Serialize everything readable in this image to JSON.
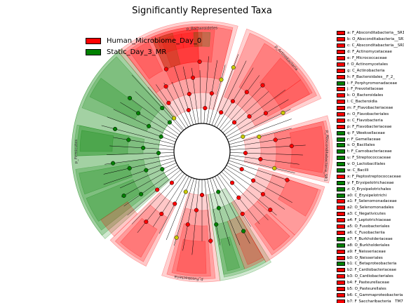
{
  "title": "Significantly Represented Taxa",
  "colors": {
    "group_a": "#ff0000",
    "group_b": "#008000",
    "node_neutral": "#c8c800"
  },
  "legend": [
    {
      "label": "Human_Microbiome_Day_0",
      "color": "#ff0000"
    },
    {
      "label": "Static_Day_3_MR",
      "color": "#008000"
    }
  ],
  "chart_data": {
    "type": "cladogram",
    "title": "Significantly Represented Taxa",
    "groups": [
      "Human_Microbiome_Day_0",
      "Static_Day_3_MR"
    ],
    "sector_labels": [
      {
        "text": "p_Bacteroidetes",
        "group": "Human_Microbiome_Day_0"
      },
      {
        "text": "p_Actinobacteria",
        "group": "Human_Microbiome_Day_0"
      },
      {
        "text": "p_Absconditabacteria_SR1",
        "group": "Human_Microbiome_Day_0"
      },
      {
        "text": "p_Fusobacteria",
        "group": "Human_Microbiome_Day_0"
      },
      {
        "text": "p_Firmicutes",
        "group": "Static_Day_3_MR"
      }
    ],
    "taxa": [
      {
        "id": "a",
        "name": "a: F_Absconditabacteria__SR1_",
        "group": "Human_Microbiome_Day_0"
      },
      {
        "id": "b",
        "name": "b: O_Absconditabacteria__SR1_",
        "group": "Human_Microbiome_Day_0"
      },
      {
        "id": "c",
        "name": "c: C_Absconditabacteria__SR1_",
        "group": "Human_Microbiome_Day_0"
      },
      {
        "id": "d",
        "name": "d: F_Actinomycetaceae",
        "group": "Human_Microbiome_Day_0"
      },
      {
        "id": "e",
        "name": "e: F_Micrococcaceae",
        "group": "Human_Microbiome_Day_0"
      },
      {
        "id": "f",
        "name": "f: O_Actinomycetales",
        "group": "Human_Microbiome_Day_0"
      },
      {
        "id": "g",
        "name": "g: C_Actinobacteria",
        "group": "Human_Microbiome_Day_0"
      },
      {
        "id": "h",
        "name": "h: F_Bacteroidales__F_2_",
        "group": "Human_Microbiome_Day_0"
      },
      {
        "id": "i",
        "name": "i: F_Porphyromonadaceae",
        "group": "Static_Day_3_MR"
      },
      {
        "id": "j",
        "name": "j: F_Prevotellaceae",
        "group": "Human_Microbiome_Day_0"
      },
      {
        "id": "k",
        "name": "k: O_Bacteroidales",
        "group": "Human_Microbiome_Day_0"
      },
      {
        "id": "l",
        "name": "l: C_Bacteroidia",
        "group": "Human_Microbiome_Day_0"
      },
      {
        "id": "m",
        "name": "m: F_Flavobacteriaceae",
        "group": "Human_Microbiome_Day_0"
      },
      {
        "id": "n",
        "name": "n: O_Flavobacteriales",
        "group": "Human_Microbiome_Day_0"
      },
      {
        "id": "o",
        "name": "o: C_Flavobacteria",
        "group": "Human_Microbiome_Day_0"
      },
      {
        "id": "p",
        "name": "p: F_Flavobacteriaceae",
        "group": "Human_Microbiome_Day_0"
      },
      {
        "id": "q",
        "name": "q: F_Weeksellaceae",
        "group": "Static_Day_3_MR"
      },
      {
        "id": "r",
        "name": "r: F_Gemellaceae",
        "group": "Static_Day_3_MR"
      },
      {
        "id": "s",
        "name": "s: O_Bacillales",
        "group": "Static_Day_3_MR"
      },
      {
        "id": "t",
        "name": "t: F_Carnobacteriaceae",
        "group": "Static_Day_3_MR"
      },
      {
        "id": "u",
        "name": "u: F_Streptococcaceae",
        "group": "Static_Day_3_MR"
      },
      {
        "id": "v",
        "name": "v: O_Lactobacillales",
        "group": "Static_Day_3_MR"
      },
      {
        "id": "w",
        "name": "w: C_Bacilli",
        "group": "Static_Day_3_MR"
      },
      {
        "id": "x",
        "name": "x: F_Peptostreptococcaceae",
        "group": "Human_Microbiome_Day_0"
      },
      {
        "id": "y",
        "name": "y: F_Erysipelotrichaceae",
        "group": "Static_Day_3_MR"
      },
      {
        "id": "z",
        "name": "z: O_Erysipelotrichales",
        "group": "Static_Day_3_MR"
      },
      {
        "id": "a0",
        "name": "a0: C_Erysipelotrichi",
        "group": "Static_Day_3_MR"
      },
      {
        "id": "a1",
        "name": "a1: F_Selenomonadaceae",
        "group": "Human_Microbiome_Day_0"
      },
      {
        "id": "a2",
        "name": "a2: O_Selenomonadales",
        "group": "Human_Microbiome_Day_0"
      },
      {
        "id": "a3",
        "name": "a3: C_Negativicutes",
        "group": "Human_Microbiome_Day_0"
      },
      {
        "id": "a4",
        "name": "a4: F_Leptotrichiaceae",
        "group": "Human_Microbiome_Day_0"
      },
      {
        "id": "a5",
        "name": "a5: O_Fusobacteriales",
        "group": "Human_Microbiome_Day_0"
      },
      {
        "id": "a6",
        "name": "a6: C_Fusobacteriia",
        "group": "Human_Microbiome_Day_0"
      },
      {
        "id": "a7",
        "name": "a7: F_Burkholderiaceae",
        "group": "Static_Day_3_MR"
      },
      {
        "id": "a8",
        "name": "a8: O_Burkholderiales",
        "group": "Static_Day_3_MR"
      },
      {
        "id": "a9",
        "name": "a9: F_Neisseriaceae",
        "group": "Human_Microbiome_Day_0"
      },
      {
        "id": "b0",
        "name": "b0: O_Neisseriales",
        "group": "Human_Microbiome_Day_0"
      },
      {
        "id": "b1",
        "name": "b1: C_Betaproteobacteria",
        "group": "Static_Day_3_MR"
      },
      {
        "id": "b2",
        "name": "b2: F_Cardiobacteriaceae",
        "group": "Human_Microbiome_Day_0"
      },
      {
        "id": "b3",
        "name": "b3: O_Cardiobacteriales",
        "group": "Human_Microbiome_Day_0"
      },
      {
        "id": "b4",
        "name": "b4: F_Pasteurellaceae",
        "group": "Human_Microbiome_Day_0"
      },
      {
        "id": "b5",
        "name": "b5: O_Pasteurellales",
        "group": "Human_Microbiome_Day_0"
      },
      {
        "id": "b6",
        "name": "b6: C_Gammaproteobacteria",
        "group": "Human_Microbiome_Day_0"
      },
      {
        "id": "b7",
        "name": "b7: F_Saccharibacteria__TM7_",
        "group": "Human_Microbiome_Day_0"
      }
    ]
  }
}
